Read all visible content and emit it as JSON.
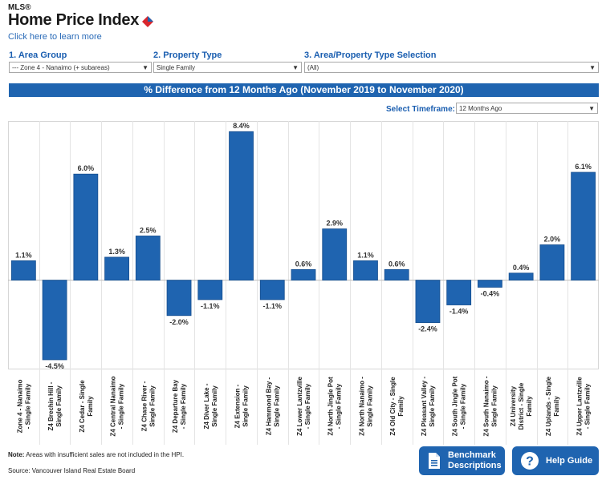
{
  "header": {
    "mls": "MLS®",
    "title": "Home Price Index",
    "learn_more": "Click here to learn more"
  },
  "selectors": {
    "area_group": {
      "num": "1.",
      "label": "Area Group",
      "value": "--- Zone 4 - Nanaimo (+ subareas)"
    },
    "property_type": {
      "num": "2.",
      "label": "Property Type",
      "value": "Single Family"
    },
    "area_property": {
      "num": "3.",
      "label": "Area/Property Type Selection",
      "value": "(All)"
    }
  },
  "banner": "% Difference from 12 Months Ago (November 2019 to November 2020)",
  "timeframe": {
    "label": "Select Timeframe:",
    "value": "12 Months Ago"
  },
  "chart_data": {
    "type": "bar",
    "categories": [
      "Zone 4 - Nanaimo - Single Family",
      "Z4 Brechin Hill - Single Family",
      "Z4 Cedar - Single Family",
      "Z4 Central Nanaimo - Single Family",
      "Z4 Chase River - Single Family",
      "Z4 Departure Bay - Single Family",
      "Z4 Diver Lake - Single Family",
      "Z4 Extension - Single Family",
      "Z4 Hammond Bay - Single Family",
      "Z4 Lower Lantzville - Single Family",
      "Z4 North Jingle Pot - Single Family",
      "Z4 North Nanaimo - Single Family",
      "Z4 Old City - Single Family",
      "Z4 Pleasant Valley - Single Family",
      "Z4 South Jingle Pot - Single Family",
      "Z4 South Nanaimo - Single Family",
      "Z4 University District - Single Family",
      "Z4 Uplands - Single Family",
      "Z4 Upper Lantzville - Single Family"
    ],
    "values": [
      1.1,
      -4.5,
      6.0,
      1.3,
      2.5,
      -2.0,
      -1.1,
      8.4,
      -1.1,
      0.6,
      2.9,
      1.1,
      0.6,
      -2.4,
      -1.4,
      -0.4,
      0.4,
      2.0,
      6.1
    ],
    "value_labels": [
      "1.1%",
      "-4.5%",
      "6.0%",
      "1.3%",
      "2.5%",
      "-2.0%",
      "-1.1%",
      "8.4%",
      "-1.1%",
      "0.6%",
      "2.9%",
      "1.1%",
      "0.6%",
      "-2.4%",
      "-1.4%",
      "-0.4%",
      "0.4%",
      "2.0%",
      "6.1%"
    ],
    "cat_lines": [
      [
        "Zone 4 - Nanaimo",
        "- Single Family"
      ],
      [
        "Z4 Brechin Hill -",
        "Single Family"
      ],
      [
        "Z4 Cedar - Single",
        "Family"
      ],
      [
        "Z4 Central Nanaimo",
        "- Single Family"
      ],
      [
        "Z4 Chase River -",
        "Single Family"
      ],
      [
        "Z4 Departure Bay",
        "- Single Family"
      ],
      [
        "Z4 Diver Lake -",
        "Single Family"
      ],
      [
        "Z4 Extension -",
        "Single Family"
      ],
      [
        "Z4 Hammond Bay -",
        "Single Family"
      ],
      [
        "Z4 Lower Lantzville",
        "- Single Family"
      ],
      [
        "Z4 North Jingle Pot",
        "- Single Family"
      ],
      [
        "Z4 North Nanaimo -",
        "Single Family"
      ],
      [
        "Z4 Old City - Single",
        "Family"
      ],
      [
        "Z4 Pleasant Valley -",
        "Single Family"
      ],
      [
        "Z4 South Jingle Pot",
        "- Single Family"
      ],
      [
        "Z4 South Nanaimo -",
        "Single Family"
      ],
      [
        "Z4 University",
        "District - Single",
        "Family"
      ],
      [
        "Z4 Uplands - Single",
        "Family"
      ],
      [
        "Z4 Upper Lantzville",
        "- Single Family"
      ]
    ],
    "ylim": [
      -5.0,
      9.0
    ],
    "bar_color": "#1f64b0",
    "grid": false
  },
  "footer": {
    "note_bold": "Note:",
    "note_text": " Areas with insufficient sales are not included in the HPI.",
    "source": "Source: Vancouver Island Real Estate Board"
  },
  "buttons": {
    "benchmark_line1": "Benchmark",
    "benchmark_line2": "Descriptions",
    "help": "Help Guide"
  },
  "colors": {
    "brand_blue": "#1f64b0",
    "logo_red": "#d9272e"
  }
}
